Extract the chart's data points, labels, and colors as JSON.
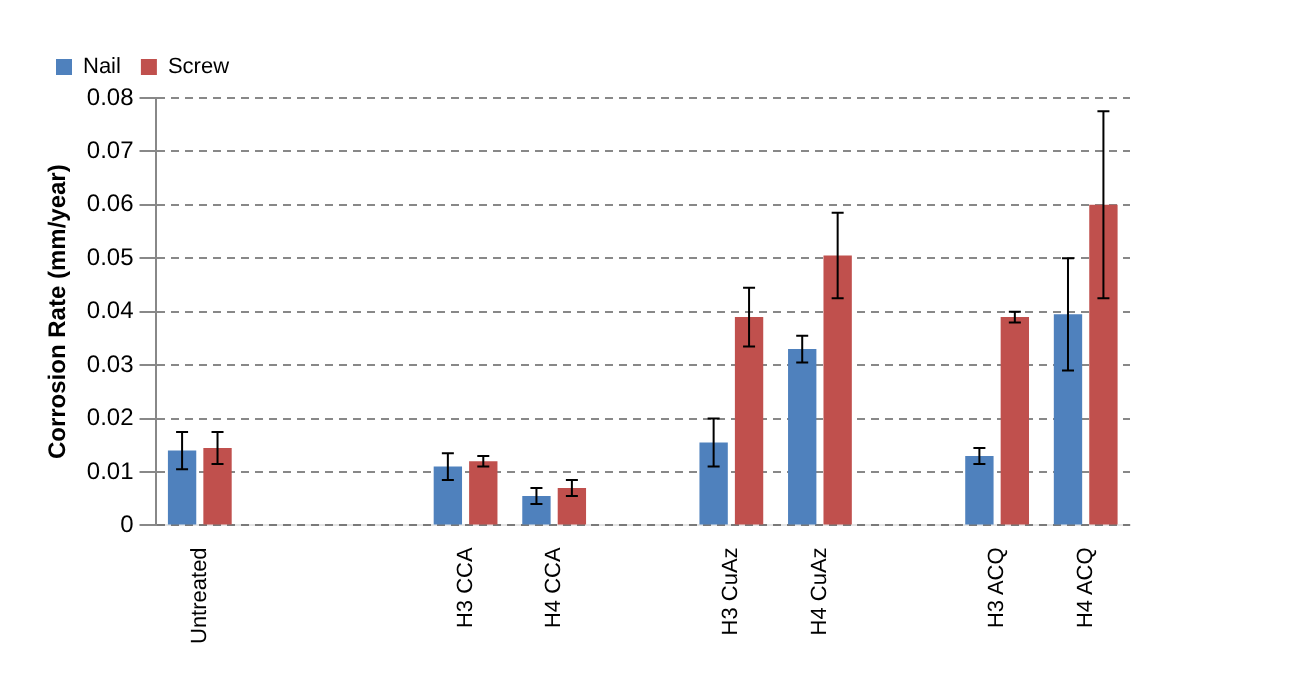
{
  "chart_data": {
    "type": "bar",
    "ylabel": "Corrosion Rate (mm/year)",
    "categories": [
      "Untreated",
      null,
      null,
      "H3 CCA",
      "H4 CCA",
      null,
      "H3 CuAz",
      "H4 CuAz",
      null,
      "H3 ACQ",
      "H4 ACQ"
    ],
    "series": [
      {
        "name": "Nail",
        "color": "#4f81bd",
        "values": [
          0.014,
          null,
          null,
          0.011,
          0.0055,
          null,
          0.0155,
          0.033,
          null,
          0.013,
          0.0395
        ],
        "errors": [
          0.0035,
          null,
          null,
          0.0025,
          0.0015,
          null,
          0.0045,
          0.0025,
          null,
          0.0015,
          0.0105
        ]
      },
      {
        "name": "Screw",
        "color": "#c0504d",
        "values": [
          0.0145,
          null,
          null,
          0.012,
          0.007,
          null,
          0.039,
          0.0505,
          null,
          0.039,
          0.06
        ],
        "errors": [
          0.003,
          null,
          null,
          0.001,
          0.0015,
          null,
          0.0055,
          0.008,
          null,
          0.001,
          0.0175
        ]
      }
    ],
    "ylim": [
      0,
      0.08
    ],
    "yticks": [
      0,
      0.01,
      0.02,
      0.03,
      0.04,
      0.05,
      0.06,
      0.07,
      0.08
    ],
    "grid": "y",
    "legend": "top left"
  }
}
